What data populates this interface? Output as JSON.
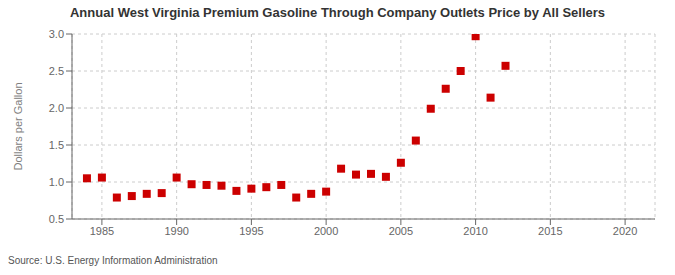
{
  "chart_data": {
    "type": "scatter",
    "title": "Annual West Virginia Premium Gasoline Through Company Outlets Price by All Sellers",
    "ylabel": "Dollars per Gallon",
    "annotations": [
      "Source: U.S. Energy Information Administration"
    ],
    "color": "#cc0000",
    "marker": "square",
    "grid": true,
    "xlim": [
      1983,
      2022
    ],
    "ylim": [
      0.5,
      3.0
    ],
    "xticks": [
      1985,
      1990,
      1995,
      2000,
      2005,
      2010,
      2015,
      2020
    ],
    "yticks": [
      0.5,
      {
        "value": 1.0,
        "label": "1.0"
      },
      1.5,
      {
        "value": 2.0,
        "label": "2.0"
      },
      2.5,
      {
        "value": 3.0,
        "label": "3.0"
      }
    ],
    "x": [
      1984,
      1985,
      1986,
      1987,
      1988,
      1989,
      1990,
      1991,
      1992,
      1993,
      1994,
      1995,
      1996,
      1997,
      1998,
      1999,
      2000,
      2001,
      2002,
      2003,
      2004,
      2005,
      2006,
      2007,
      2008,
      2009,
      2010,
      2011,
      2012
    ],
    "values": [
      1.05,
      1.06,
      0.79,
      0.81,
      0.84,
      0.85,
      1.06,
      0.97,
      0.96,
      0.95,
      0.88,
      0.91,
      0.93,
      0.96,
      0.79,
      0.84,
      0.87,
      1.18,
      1.1,
      1.11,
      1.07,
      1.26,
      1.56,
      1.99,
      2.26,
      2.5,
      2.97,
      2.14,
      2.57
    ]
  }
}
